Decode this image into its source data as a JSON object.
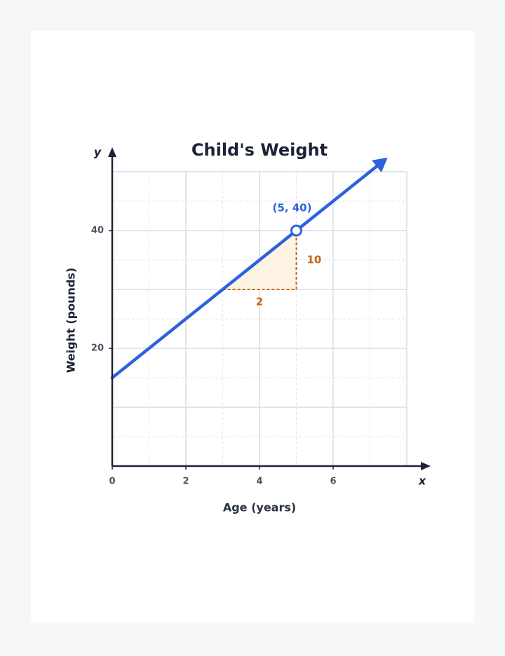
{
  "chart_data": {
    "type": "line",
    "title": "Child's Weight",
    "x_label": "Age (years)",
    "y_label": "Weight (pounds)",
    "x_axis_letter": "x",
    "y_axis_letter": "y",
    "xlim": [
      0,
      8
    ],
    "ylim": [
      0,
      50
    ],
    "xticks": [
      0,
      2,
      4,
      6
    ],
    "yticks": [
      20,
      40
    ],
    "grid_step": {
      "x": 2,
      "y": 10
    },
    "minor_grid_step": {
      "x": 1,
      "y": 5
    },
    "series": [
      {
        "color": "#2d62dc",
        "x": [
          0,
          7.3
        ],
        "values": [
          15,
          51.5
        ]
      }
    ],
    "point": {
      "x": 5,
      "y": 40,
      "label": "(5, 40)"
    },
    "slope_triangle": {
      "run": 2,
      "rise": 10,
      "color": "#c7650f",
      "fill": "#fdf3e3"
    }
  }
}
